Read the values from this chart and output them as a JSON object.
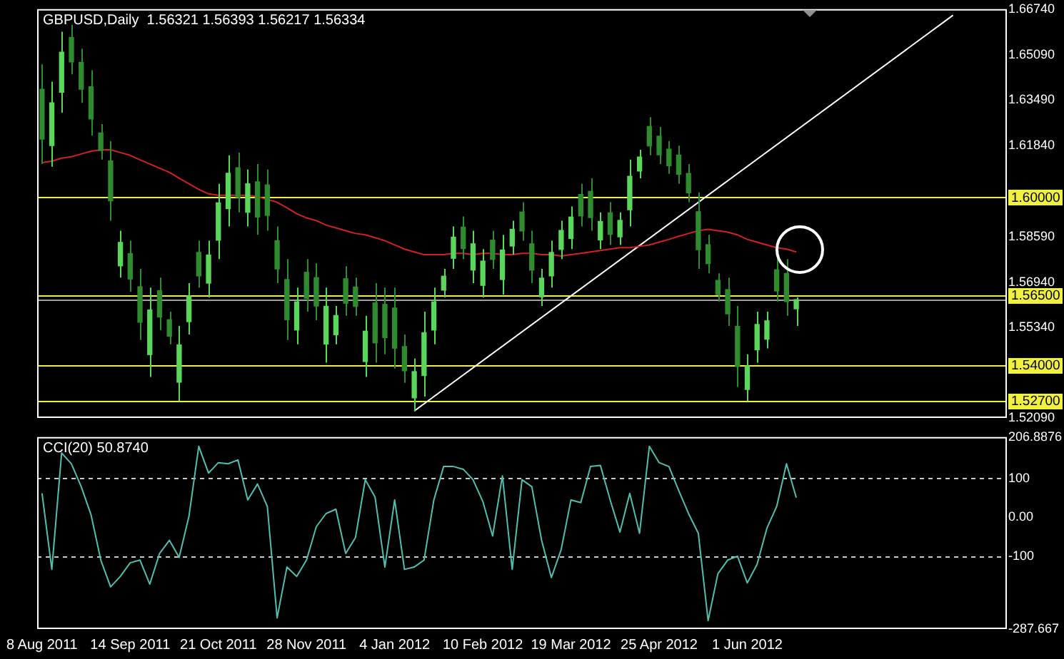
{
  "chart_data": [
    {
      "type": "candlestick",
      "title": "GBPUSD,Daily  1.56321 1.56393 1.56217 1.56334",
      "colors": [
        "#2e8b2e",
        "#5ad65a",
        "#5ad65a",
        "#2e8b2e",
        "#2e8b2e",
        "#2e8b2e",
        "#2e8b2e",
        "#2e8b2e",
        "#5ad65a",
        "#2e8b2e",
        "#2e8b2e",
        "#5ad65a",
        "#2e8b2e",
        "#2e8b2e",
        "#5ad65a",
        "#5ad65a",
        "#2e8b2e",
        "#5ad65a",
        "#5ad65a",
        "#5ad65a",
        "#2e8b2e",
        "#5ad65a",
        "#2e8b2e",
        "#2e8b2e",
        "#2e8b2e",
        "#2e8b2e",
        "#5ad65a",
        "#2e8b2e",
        "#2e8b2e",
        "#5ad65a",
        "#5ad65a",
        "#2e8b2e",
        "#2e8b2e",
        "#5ad65a",
        "#2e8b2e",
        "#2e8b2e",
        "#2e8b2e",
        "#2e8b2e",
        "#5ad65a",
        "#5ad65a",
        "#5ad65a",
        "#5ad65a",
        "#5ad65a",
        "#2e8b2e",
        "#5ad65a",
        "#5ad65a",
        "#2e8b2e",
        "#5ad65a",
        "#5ad65a",
        "#2e8b2e",
        "#2e8b2e",
        "#5ad65a",
        "#5ad65a",
        "#5ad65a",
        "#5ad65a",
        "#2e8b2e",
        "#2e8b2e",
        "#5ad65a",
        "#2e8b2e",
        "#5ad65a",
        "#5ad65a",
        "#5ad65a",
        "#2e8b2e",
        "#2e8b2e",
        "#2e8b2e",
        "#2e8b2e",
        "#2e8b2e",
        "#2e8b2e",
        "#2e8b2e",
        "#2e8b2e",
        "#2e8b2e",
        "#2e8b2e",
        "#5ad65a",
        "#5ad65a",
        "#5ad65a",
        "#2e8b2e",
        "#2e8b2e",
        "#5ad65a",
        null,
        null,
        null,
        null,
        null,
        null,
        null,
        null,
        null,
        null,
        null,
        null,
        null,
        null,
        null,
        null,
        null,
        null,
        null,
        null,
        null
      ],
      "ohlc": [
        [
          1.6387,
          1.6476,
          1.6119,
          1.6208
        ],
        [
          1.6185,
          1.6414,
          1.6109,
          1.6338
        ],
        [
          1.6376,
          1.6593,
          1.6303,
          1.652
        ],
        [
          1.6573,
          1.6618,
          1.644,
          1.6485
        ],
        [
          1.6483,
          1.6532,
          1.6338,
          1.6387
        ],
        [
          1.6396,
          1.6455,
          1.6221,
          1.628
        ],
        [
          1.623,
          1.6262,
          1.6135,
          1.6167
        ],
        [
          1.613,
          1.6201,
          1.5916,
          1.5987
        ],
        [
          1.5754,
          1.588,
          1.5712,
          1.5838
        ],
        [
          1.5798,
          1.5844,
          1.5661,
          1.5707
        ],
        [
          1.5679,
          1.5743,
          1.5488,
          1.5552
        ],
        [
          1.5436,
          1.5676,
          1.5356,
          1.5596
        ],
        [
          1.5665,
          1.5712,
          1.5524,
          1.5571
        ],
        [
          1.5561,
          1.559,
          1.5473,
          1.5502
        ],
        [
          1.5337,
          1.5539,
          1.5269,
          1.5471
        ],
        [
          1.5554,
          1.5692,
          1.5508,
          1.5646
        ],
        [
          1.5802,
          1.5844,
          1.5676,
          1.5718
        ],
        [
          1.5692,
          1.5844,
          1.5641,
          1.5793
        ],
        [
          1.5846,
          1.6048,
          1.5778,
          1.598
        ],
        [
          1.5959,
          1.615,
          1.5895,
          1.6086
        ],
        [
          1.6106,
          1.616,
          1.5946,
          1.6
        ],
        [
          1.5946,
          1.6099,
          1.5895,
          1.6048
        ],
        [
          1.6055,
          1.6119,
          1.5865,
          1.5929
        ],
        [
          1.6044,
          1.6099,
          1.588,
          1.5935
        ],
        [
          1.5844,
          1.5895,
          1.5692,
          1.5743
        ],
        [
          1.5705,
          1.5778,
          1.5488,
          1.5561
        ],
        [
          1.5524,
          1.5676,
          1.5473,
          1.5625
        ],
        [
          1.5731,
          1.5778,
          1.559,
          1.5637
        ],
        [
          1.5712,
          1.5763,
          1.5559,
          1.561
        ],
        [
          1.5474,
          1.5676,
          1.5407,
          1.5609
        ],
        [
          1.5507,
          1.561,
          1.5473,
          1.5576
        ],
        [
          1.5708,
          1.5753,
          1.5575,
          1.562
        ],
        [
          1.5678,
          1.5712,
          1.5575,
          1.5609
        ],
        [
          1.5411,
          1.5575,
          1.5356,
          1.552
        ],
        [
          1.5621,
          1.5692,
          1.5407,
          1.5478
        ],
        [
          1.5616,
          1.5676,
          1.5437,
          1.5497
        ],
        [
          1.5603,
          1.5676,
          1.5386,
          1.5459
        ],
        [
          1.5465,
          1.5508,
          1.5335,
          1.5378
        ],
        [
          1.5281,
          1.5422,
          1.5234,
          1.5375
        ],
        [
          1.5361,
          1.559,
          1.5285,
          1.5514
        ],
        [
          1.5524,
          1.5676,
          1.5473,
          1.5625
        ],
        [
          1.5667,
          1.5743,
          1.5641,
          1.5717
        ],
        [
          1.5781,
          1.5895,
          1.5743,
          1.5857
        ],
        [
          1.5893,
          1.5931,
          1.5778,
          1.5816
        ],
        [
          1.5739,
          1.588,
          1.5692,
          1.5833
        ],
        [
          1.5684,
          1.5814,
          1.5641,
          1.5771
        ],
        [
          1.5846,
          1.588,
          1.5743,
          1.5777
        ],
        [
          1.5705,
          1.5865,
          1.5651,
          1.5811
        ],
        [
          1.5825,
          1.5916,
          1.5794,
          1.5885
        ],
        [
          1.5947,
          1.5982,
          1.5844,
          1.5879
        ],
        [
          1.5833,
          1.588,
          1.5692,
          1.5739
        ],
        [
          1.5643,
          1.5743,
          1.561,
          1.571
        ],
        [
          1.5718,
          1.5844,
          1.5676,
          1.5802
        ],
        [
          1.5813,
          1.5916,
          1.5778,
          1.5881
        ],
        [
          1.5852,
          1.5967,
          1.5814,
          1.5929
        ],
        [
          1.601,
          1.6048,
          1.5895,
          1.5933
        ],
        [
          1.6021,
          1.6068,
          1.588,
          1.5927
        ],
        [
          1.5847,
          1.5946,
          1.5814,
          1.5913
        ],
        [
          1.5944,
          1.5982,
          1.5829,
          1.5867
        ],
        [
          1.5858,
          1.5946,
          1.5829,
          1.5917
        ],
        [
          1.5955,
          1.6135,
          1.5895,
          1.6075
        ],
        [
          1.6094,
          1.617,
          1.6068,
          1.6144
        ],
        [
          1.6253,
          1.6287,
          1.615,
          1.6184
        ],
        [
          1.6219,
          1.6252,
          1.6119,
          1.6152
        ],
        [
          1.6172,
          1.6201,
          1.6084,
          1.6113
        ],
        [
          1.6151,
          1.6185,
          1.6048,
          1.6082
        ],
        [
          1.6085,
          1.6119,
          1.5982,
          1.6016
        ],
        [
          1.5948,
          1.6017,
          1.5743,
          1.5812
        ],
        [
          1.583,
          1.5865,
          1.5727,
          1.5762
        ],
        [
          1.5702,
          1.5727,
          1.5626,
          1.5651
        ],
        [
          1.5669,
          1.5712,
          1.5539,
          1.5582
        ],
        [
          1.5537,
          1.561,
          1.532,
          1.5393
        ],
        [
          1.5311,
          1.5437,
          1.5269,
          1.5395
        ],
        [
          1.5453,
          1.559,
          1.5407,
          1.5544
        ],
        [
          1.5491,
          1.559,
          1.5458,
          1.5557
        ],
        [
          1.574,
          1.5778,
          1.5626,
          1.5664
        ],
        [
          1.5727,
          1.5778,
          1.5575,
          1.5626
        ],
        [
          1.56,
          1.5641,
          1.5539,
          1.5633
        ],
        null,
        null,
        null,
        null,
        null,
        null,
        null,
        null,
        null,
        null,
        null,
        null,
        null,
        null,
        null,
        null,
        null,
        null,
        null,
        null,
        null
      ],
      "series": [
        {
          "type": "line",
          "color": "#d42020",
          "values": [
            1.6124,
            1.6129,
            1.614,
            1.6145,
            1.6155,
            1.6165,
            1.617,
            1.617,
            1.616,
            1.615,
            1.6134,
            1.6119,
            1.6104,
            1.6089,
            1.6068,
            1.6048,
            1.6028,
            1.6012,
            1.6007,
            1.6007,
            1.6007,
            1.6007,
            1.6002,
            1.5992,
            1.5982,
            1.5962,
            1.5941,
            1.5926,
            1.5916,
            1.59,
            1.589,
            1.588,
            1.587,
            1.5865,
            1.5855,
            1.5844,
            1.5829,
            1.5814,
            1.5804,
            1.5794,
            1.5794,
            1.5794,
            1.5799,
            1.5799,
            1.5794,
            1.5799,
            1.5799,
            1.5794,
            1.5794,
            1.5799,
            1.5799,
            1.5794,
            1.5794,
            1.5789,
            1.5794,
            1.5799,
            1.5804,
            1.5809,
            1.5814,
            1.5819,
            1.5819,
            1.5824,
            1.5829,
            1.5839,
            1.5849,
            1.586,
            1.587,
            1.588,
            1.5885,
            1.588,
            1.5875,
            1.5865,
            1.5849,
            1.5839,
            1.5829,
            1.5819,
            1.5814,
            1.5804,
            null,
            null,
            null,
            null,
            null,
            null,
            null,
            null,
            null,
            null,
            null,
            null,
            null,
            null,
            null,
            null,
            null,
            null,
            null,
            null,
            null
          ]
        },
        {
          "type": "line",
          "color": "#ffffff",
          "values": [
            null,
            null,
            null,
            null,
            null,
            null,
            null,
            null,
            null,
            null,
            null,
            null,
            null,
            null,
            null,
            null,
            null,
            null,
            null,
            null,
            null,
            null,
            null,
            null,
            null,
            null,
            null,
            null,
            null,
            null,
            null,
            null,
            null,
            null,
            null,
            null,
            null,
            null,
            1.5234,
            null,
            null,
            null,
            null,
            null,
            null,
            null,
            null,
            null,
            null,
            null,
            null,
            null,
            null,
            null,
            null,
            null,
            null,
            null,
            null,
            null,
            null,
            null,
            null,
            null,
            null,
            null,
            null,
            null,
            null,
            null,
            null,
            null,
            null,
            null,
            null,
            null,
            null,
            null,
            null,
            null,
            null,
            null,
            null,
            null,
            null,
            null,
            null,
            null,
            null,
            null,
            null,
            null,
            null,
            1.6652,
            null,
            null,
            null,
            null,
            null
          ]
        }
      ],
      "ylim": [
        1.5209,
        1.6674
      ],
      "yticks": [
        {
          "value": 1.6674,
          "label": "1.66740"
        },
        {
          "value": 1.6509,
          "label": "1.65090"
        },
        {
          "value": 1.6349,
          "label": "1.63490"
        },
        {
          "value": 1.6184,
          "label": "1.61840"
        },
        {
          "value": 1.5859,
          "label": "1.58590"
        },
        {
          "value": 1.5694,
          "label": "1.56940"
        },
        {
          "value": 1.5534,
          "label": "1.55340"
        },
        {
          "value": 1.5209,
          "label": "1.52090"
        }
      ],
      "ref_lines": [
        {
          "axis": "y",
          "value": 1.6,
          "label": "1.60000",
          "color": "#f0f040"
        },
        {
          "axis": "y",
          "value": 1.565,
          "label": "1.56500",
          "color": "#f0f040"
        },
        {
          "axis": "y",
          "value": 1.56334,
          "color": "#a0a0a0"
        },
        {
          "axis": "y",
          "value": 1.54,
          "label": "1.54000",
          "color": "#f0f040"
        },
        {
          "axis": "y",
          "value": 1.527,
          "label": "1.52700",
          "color": "#f0f040"
        }
      ],
      "tick_labels": "y"
    },
    {
      "type": "line",
      "title": "CCI(20) 50.8740",
      "color": "#4fbfb0",
      "categories": [
        "8 Aug 2011",
        null,
        null,
        null,
        null,
        null,
        null,
        null,
        null,
        "14 Sep 2011",
        null,
        null,
        null,
        null,
        null,
        null,
        null,
        null,
        "21 Oct 2011",
        null,
        null,
        null,
        null,
        null,
        null,
        null,
        null,
        "28 Nov 2011",
        null,
        null,
        null,
        null,
        null,
        null,
        null,
        null,
        "4 Jan 2012",
        null,
        null,
        null,
        null,
        null,
        null,
        null,
        null,
        "10 Feb 2012",
        null,
        null,
        null,
        null,
        null,
        null,
        null,
        null,
        "19 Mar 2012",
        null,
        null,
        null,
        null,
        null,
        null,
        null,
        null,
        "25 Apr 2012",
        null,
        null,
        null,
        null,
        null,
        null,
        null,
        null,
        "1 Jun 2012",
        null,
        null,
        null,
        null,
        null,
        null,
        null,
        null,
        null,
        null,
        null,
        null,
        null,
        null,
        null,
        null,
        null,
        null,
        null,
        null,
        null,
        null,
        null,
        null,
        null,
        null
      ],
      "values": [
        62,
        -134,
        166,
        138,
        79,
        7,
        -110,
        -179,
        -152,
        -117,
        -110,
        -172,
        -93,
        -59,
        -103,
        3,
        183,
        114,
        141,
        138,
        148,
        45,
        86,
        28,
        -259,
        -128,
        -152,
        -110,
        -24,
        10,
        21,
        -93,
        -52,
        97,
        52,
        -128,
        45,
        -134,
        -128,
        -110,
        45,
        131,
        131,
        124,
        97,
        41,
        -48,
        107,
        -134,
        97,
        79,
        -59,
        -155,
        -83,
        45,
        38,
        131,
        134,
        45,
        -38,
        62,
        -41,
        183,
        141,
        131,
        69,
        10,
        -41,
        -266,
        -145,
        -110,
        -100,
        -169,
        -121,
        -28,
        28,
        138,
        51,
        null,
        null,
        null,
        null,
        null,
        null,
        null,
        null,
        null,
        null,
        null,
        null,
        null,
        null,
        null,
        null,
        null,
        null,
        null,
        null,
        null
      ],
      "ylim": [
        -287.667,
        206.8876
      ],
      "yticks": [
        {
          "value": 206.8876,
          "label": "206.8876"
        },
        100,
        {
          "value": 0,
          "label": "0.00"
        },
        -100,
        {
          "value": -287.667,
          "label": "-287.667"
        }
      ],
      "ref_lines": [
        {
          "axis": "y",
          "value": 100,
          "color": "#c8c8c8",
          "line_style": "dashed"
        },
        {
          "axis": "y",
          "value": -100,
          "color": "#c8c8c8",
          "line_style": "dashed"
        }
      ]
    }
  ]
}
